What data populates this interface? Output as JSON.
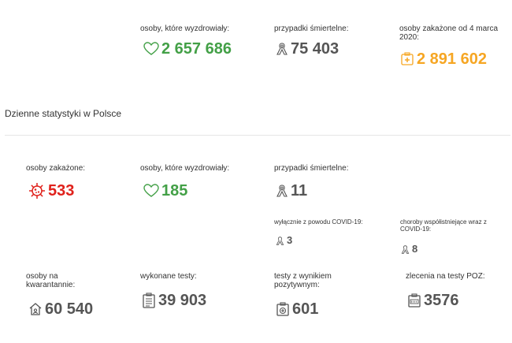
{
  "summary": {
    "recovered": {
      "label": "osoby, które wyzdrowiały:",
      "value": "2 657 686",
      "icon": "heart-outline-icon",
      "color": "#43a047"
    },
    "deaths": {
      "label": "przypadki śmiertelne:",
      "value": "75 403",
      "icon": "ribbon-icon",
      "color": "#555555"
    },
    "infected_total": {
      "label": "osoby zakażone od 4 marca 2020:",
      "value": "2 891 602",
      "icon": "medical-kit-icon",
      "color": "#f6a623"
    }
  },
  "daily": {
    "title": "Dzienne statystyki w Polsce",
    "infected": {
      "label": "osoby zakażone:",
      "value": "533",
      "icon": "virus-icon",
      "color": "#e0211b"
    },
    "recovered": {
      "label": "osoby, które wyzdrowiały:",
      "value": "185",
      "icon": "heart-outline-icon",
      "color": "#43a047"
    },
    "deaths": {
      "label": "przypadki śmiertelne:",
      "value": "11",
      "icon": "ribbon-icon"
    },
    "deaths_covid_only": {
      "label": "wyłącznie z powodu COVID-19:",
      "value": "3",
      "icon": "ribbon-icon"
    },
    "deaths_comorbid": {
      "label": "choroby współistniejące wraz z COVID-19:",
      "value": "8",
      "icon": "ribbon-icon"
    },
    "quarantine": {
      "label": "osoby na kwarantannie:",
      "value": "60 540",
      "icon": "house-icon"
    },
    "tests_done": {
      "label": "wykonane testy:",
      "value": "39 903",
      "icon": "clipboard-icon"
    },
    "tests_positive": {
      "label": "testy z wynikiem pozytywnym:",
      "value": "601",
      "icon": "test-positive-icon"
    },
    "poz_referrals": {
      "label": "zlecenia na testy POZ:",
      "value": "3576",
      "icon": "poz-referral-icon"
    }
  }
}
